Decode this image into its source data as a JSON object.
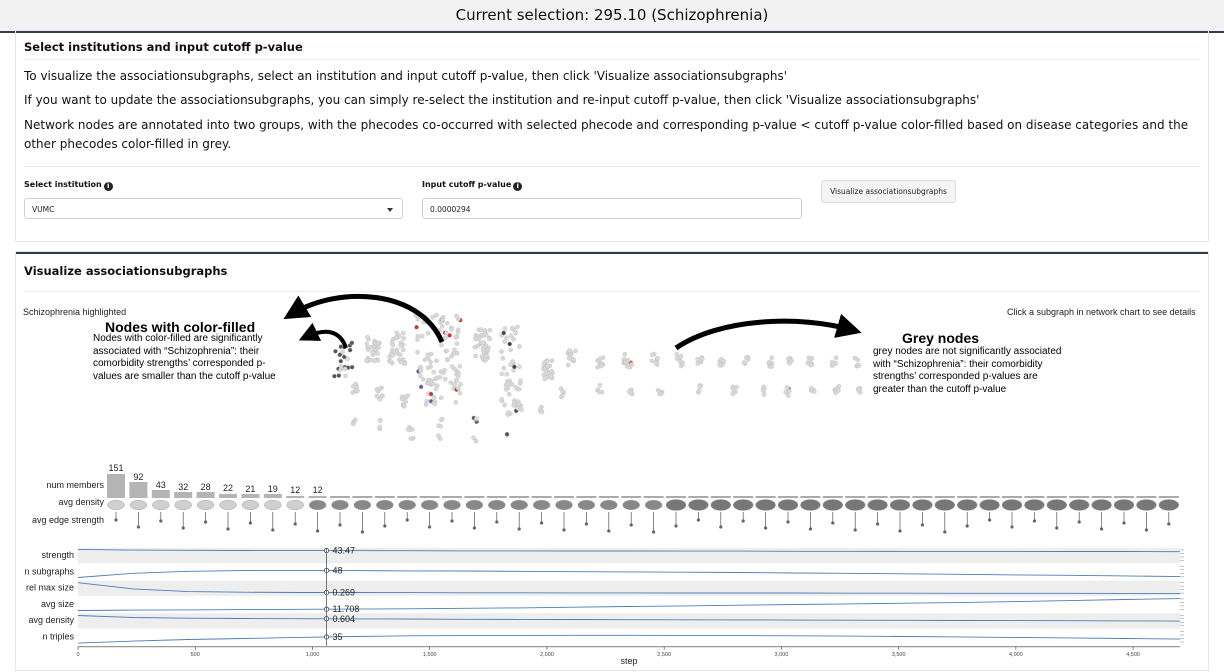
{
  "header": {
    "title": "Current selection: 295.10 (Schizophrenia)"
  },
  "select_panel": {
    "title": "Select institutions and input cutoff p-value",
    "paragraphs": [
      "To visualize the associationsubgraphs, select an institution and input cutoff p-value, then click 'Visualize associationsubgraphs'",
      "If you want to update the associationsubgraphs, you can simply re-select the institution and re-input cutoff p-value, then click 'Visualize associationsubgraphs'",
      "Network nodes are annotated into two groups, with the phecodes co-occurred with selected phecode and corresponding p-value < cutoff p-value color-filled based on disease categories and the other phecodes color-filled in grey."
    ],
    "institution_label": "Select institution",
    "institution_value": "VUMC",
    "cutoff_label": "Input cutoff p-value",
    "cutoff_value": "0.0000294",
    "button_label": "Visualize associationsubgraphs"
  },
  "viz_panel": {
    "title": "Visualize associationsubgraphs",
    "highlight_caption": "Schizophrenia highlighted",
    "hint": "Click a subgraph in network chart to see details",
    "annotations": {
      "colored_title": "Nodes with color-filled",
      "colored_lines": [
        "Nodes with color-filled are significantly",
        "associated with “Schizophrenia”: their",
        "comorbidity strengths’ corresponded p-",
        "values are smaller than the cutoff p-value"
      ],
      "grey_title": "Grey nodes",
      "grey_lines": [
        "grey nodes are not significantly associated",
        "with “Schizophrenia”: their comorbidity",
        "strengths’ corresponded p-values are",
        "greater than the cutoff p-value"
      ]
    },
    "subgraph_rows": {
      "labels": [
        "num members",
        "avg density",
        "avg edge strength"
      ],
      "member_counts": [
        "151",
        "92",
        "43",
        "32",
        "28",
        "22",
        "21",
        "19",
        "12",
        "12"
      ],
      "column_count": 48
    }
  },
  "chart_data": {
    "type": "line",
    "xlabel": "step",
    "x_ticks": [
      "0",
      "500",
      "1,000",
      "1,500",
      "2,000",
      "2,500",
      "3,000",
      "3,500",
      "4,000",
      "4,500"
    ],
    "xlim": [
      0,
      4700
    ],
    "cursor_step": 1060,
    "series": [
      {
        "name": "strength",
        "cursor_value": "43.47",
        "values": [
          97,
          92,
          90,
          89,
          88,
          88,
          87,
          86,
          86,
          85,
          85,
          84,
          84,
          83,
          83,
          82,
          82,
          82,
          81,
          81,
          80
        ]
      },
      {
        "name": "n subgraphs",
        "cursor_value": "48",
        "values": [
          8,
          40,
          55,
          60,
          62,
          60,
          58,
          57,
          55,
          52,
          50,
          48,
          46,
          42,
          40,
          36,
          32,
          28,
          25,
          20,
          15
        ]
      },
      {
        "name": "rel max size",
        "cursor_value": "0.269",
        "values": [
          92,
          45,
          25,
          20,
          18,
          18,
          17,
          16,
          16,
          15,
          15,
          14,
          14,
          14,
          13,
          13,
          12,
          12,
          12,
          11,
          10
        ]
      },
      {
        "name": "avg size",
        "cursor_value": "11.708",
        "values": [
          5,
          8,
          10,
          12,
          14,
          16,
          18,
          22,
          25,
          30,
          35,
          40,
          45,
          50,
          55,
          60,
          65,
          72,
          80,
          88,
          95
        ]
      },
      {
        "name": "avg density",
        "cursor_value": "0.604",
        "values": [
          90,
          75,
          70,
          68,
          66,
          65,
          64,
          62,
          61,
          60,
          59,
          58,
          57,
          56,
          55,
          54,
          53,
          52,
          51,
          50,
          48
        ]
      },
      {
        "name": "n triples",
        "cursor_value": "35",
        "values": [
          5,
          20,
          32,
          40,
          48,
          55,
          60,
          62,
          63,
          64,
          64,
          63,
          62,
          60,
          58,
          55,
          52,
          48,
          44,
          40,
          35
        ]
      }
    ]
  }
}
